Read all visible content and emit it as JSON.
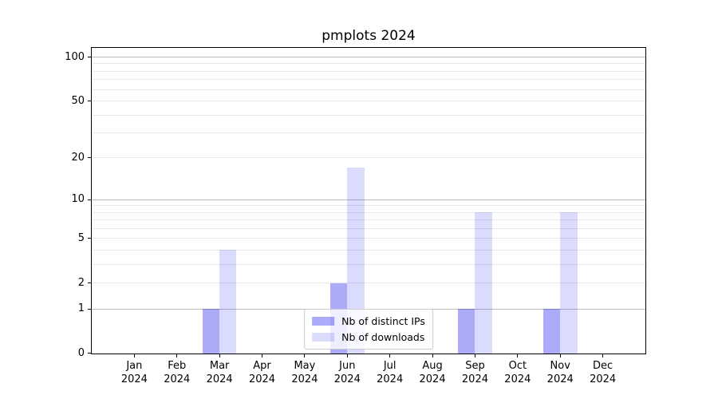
{
  "title": "pmplots 2024",
  "chart_data": {
    "type": "bar",
    "title": "pmplots 2024",
    "x_months": [
      "Jan",
      "Feb",
      "Mar",
      "Apr",
      "May",
      "Jun",
      "Jul",
      "Aug",
      "Sep",
      "Oct",
      "Nov",
      "Dec"
    ],
    "x_year": "2024",
    "series": [
      {
        "name": "Nb of distinct IPs",
        "color": "#0000f0",
        "alpha": 0.33,
        "values": [
          0,
          0,
          1,
          0,
          0,
          2,
          0,
          0,
          1,
          0,
          1,
          0
        ]
      },
      {
        "name": "Nb of downloads",
        "color": "#0000f0",
        "alpha": 0.14,
        "values": [
          0,
          0,
          4,
          0,
          0,
          17,
          0,
          0,
          8,
          0,
          8,
          0
        ]
      }
    ],
    "y_scale": "log1p",
    "ylim": [
      0,
      115.6
    ],
    "y_ticks": [
      0,
      1,
      2,
      5,
      10,
      20,
      50,
      100
    ],
    "y_major_gridlines": [
      1,
      10,
      100
    ],
    "y_minor_gridlines": [
      2,
      3,
      4,
      5,
      6,
      7,
      8,
      9,
      20,
      30,
      40,
      50,
      60,
      70,
      80,
      90
    ],
    "grid": true,
    "legend_position": "lower center"
  },
  "colors": {
    "bar_base": "#0000f0",
    "bar_distinct_ips_visible": "#abaaf9",
    "bar_downloads_visible": "#dbdaf9",
    "major_grid": "#bcbcbc",
    "minor_grid": "#e9e9e9",
    "spine": "#000000",
    "legend_border": "#cccccc",
    "background": "#ffffff"
  }
}
